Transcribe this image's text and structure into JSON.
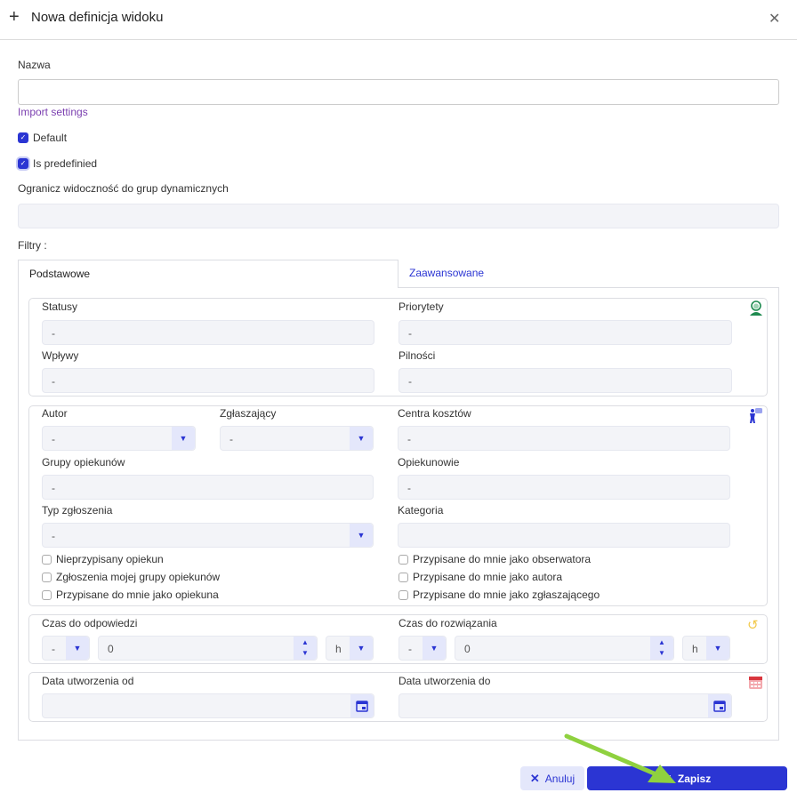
{
  "dialog": {
    "title": "Nowa definicja widoku"
  },
  "form": {
    "name_label": "Nazwa",
    "name_value": "",
    "import_link": "Import settings",
    "default_label": "Default",
    "default_checked": true,
    "predefined_label": "Is predefinied",
    "predefined_checked": true,
    "restrict_label": "Ogranicz widoczność do grup dynamicznych",
    "filters_label": "Filtry :"
  },
  "tabs": [
    {
      "label": "Podstawowe",
      "active": true
    },
    {
      "label": "Zaawansowane",
      "active": false
    }
  ],
  "group1": {
    "statusy": "Statusy",
    "priorytety": "Priorytety",
    "wplywy": "Wpływy",
    "pilnosci": "Pilności",
    "empty": "-"
  },
  "group2": {
    "autor": "Autor",
    "zglaszajacy": "Zgłaszający",
    "centra": "Centra kosztów",
    "grupy": "Grupy opiekunów",
    "opiekunowie": "Opiekunowie",
    "typ": "Typ zgłoszenia",
    "kategoria": "Kategoria",
    "empty": "-",
    "checkboxes": [
      "Nieprzypisany opiekun",
      "Zgłoszenia mojej grupy opiekunów",
      "Przypisane do mnie jako opiekuna",
      "Przypisane do mnie jako obserwatora",
      "Przypisane do mnie jako autora",
      "Przypisane do mnie jako zgłaszającego"
    ]
  },
  "group3": {
    "odpowiedz": "Czas do odpowiedzi",
    "rozwiazanie": "Czas do rozwiązania",
    "sign": "-",
    "value": "0",
    "unit": "h"
  },
  "group4": {
    "od": "Data utworzenia od",
    "do": "Data utworzenia do"
  },
  "buttons": {
    "cancel": "Anuluj",
    "save": "Zapisz"
  },
  "colors": {
    "accent": "#2b35d3",
    "link": "#7b3fb0",
    "arrow": "#8fd13f"
  }
}
